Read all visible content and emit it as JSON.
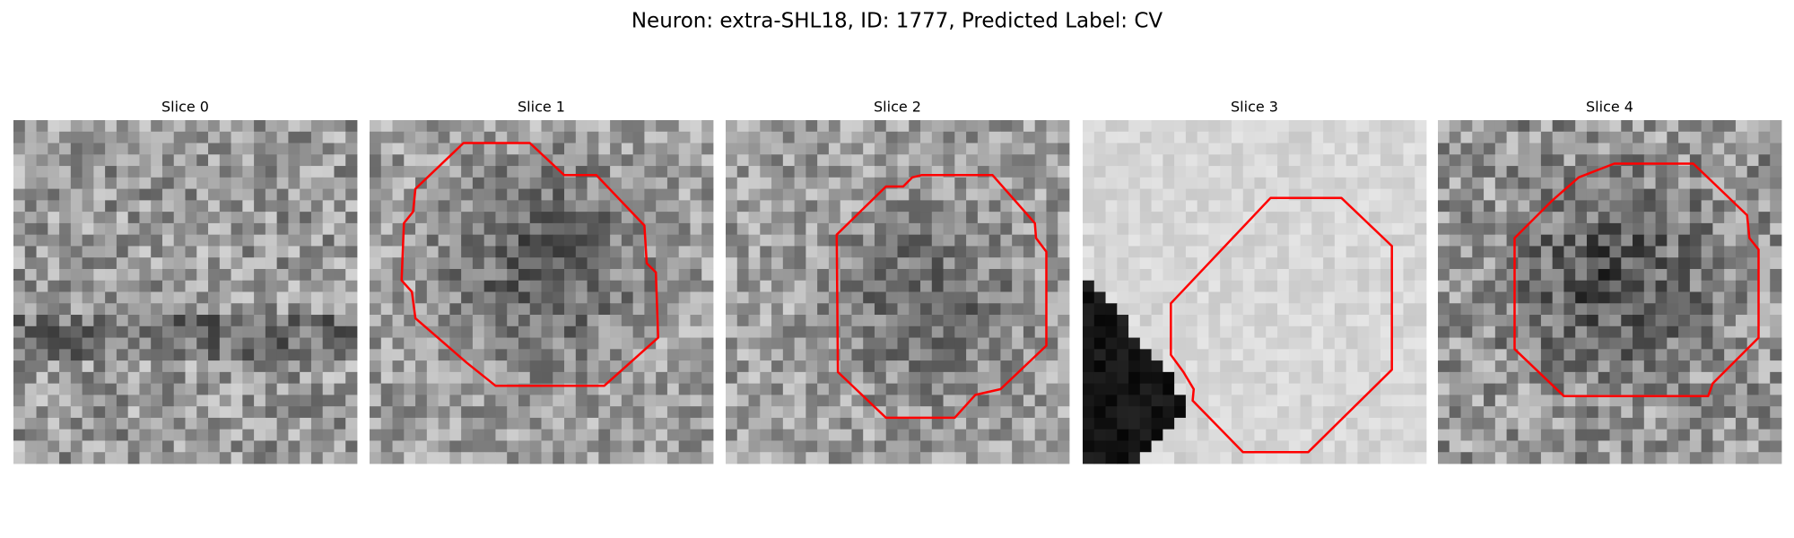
{
  "title": "Neuron: extra-SHL18, ID: 1777, Predicted Label: CV",
  "panels": [
    {
      "title": "Slice 0"
    },
    {
      "title": "Slice 1"
    },
    {
      "title": "Slice 2"
    },
    {
      "title": "Slice 3"
    },
    {
      "title": "Slice 4"
    }
  ]
}
